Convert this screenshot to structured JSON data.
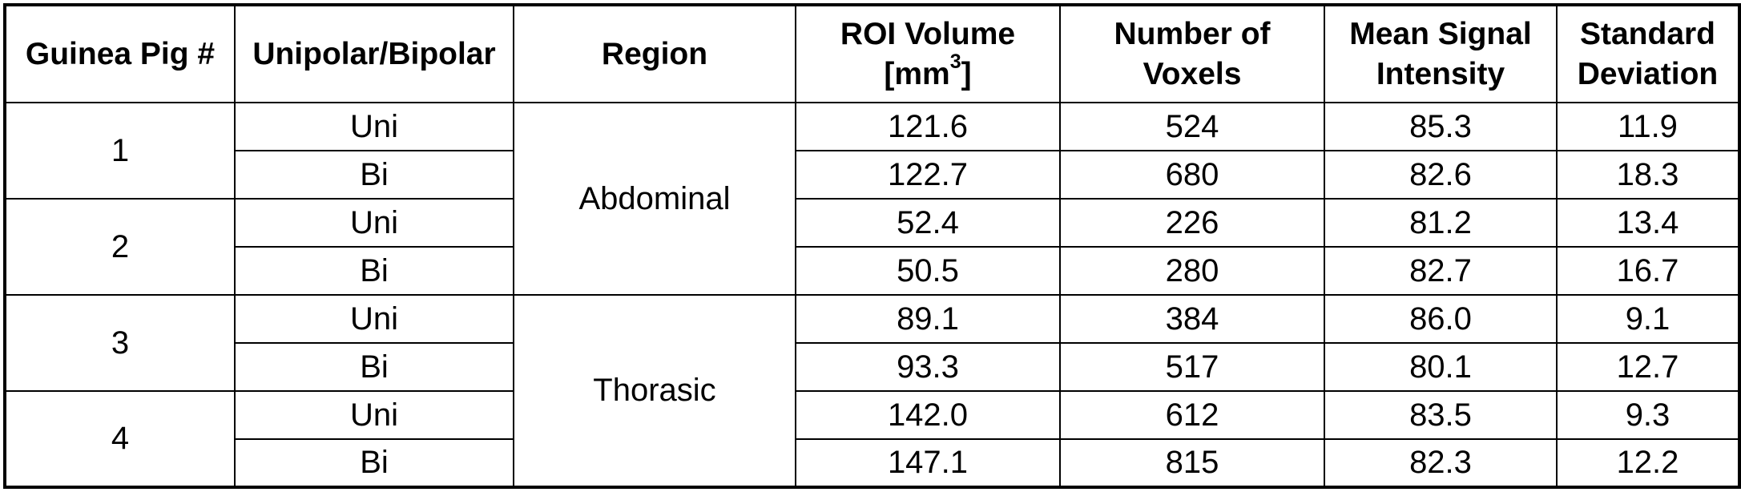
{
  "colors": {
    "background": "#ffffff",
    "border": "#000000",
    "text": "#000000"
  },
  "header": {
    "guinea_pig": "Guinea Pig #",
    "polarity": "Unipolar/Bipolar",
    "region": "Region",
    "roi_volume": {
      "line1": "ROI Volume",
      "unit_open": "[mm",
      "unit_sup": "3",
      "unit_close": "]"
    },
    "voxels": {
      "line1": "Number of",
      "line2": "Voxels"
    },
    "mean_signal": {
      "line1": "Mean Signal",
      "line2": "Intensity"
    },
    "std_dev": {
      "line1": "Standard",
      "line2": "Deviation"
    }
  },
  "rows": [
    {
      "guinea_pig": "1",
      "region": "Abdominal",
      "polarity": "Uni",
      "roi_volume": "121.6",
      "voxels": "524",
      "mean_signal": "85.3",
      "std_dev": "11.9"
    },
    {
      "polarity": "Bi",
      "roi_volume": "122.7",
      "voxels": "680",
      "mean_signal": "82.6",
      "std_dev": "18.3"
    },
    {
      "guinea_pig": "2",
      "polarity": "Uni",
      "roi_volume": "52.4",
      "voxels": "226",
      "mean_signal": "81.2",
      "std_dev": "13.4"
    },
    {
      "polarity": "Bi",
      "roi_volume": "50.5",
      "voxels": "280",
      "mean_signal": "82.7",
      "std_dev": "16.7"
    },
    {
      "guinea_pig": "3",
      "region": "Thorasic",
      "polarity": "Uni",
      "roi_volume": "89.1",
      "voxels": "384",
      "mean_signal": "86.0",
      "std_dev": "9.1"
    },
    {
      "polarity": "Bi",
      "roi_volume": "93.3",
      "voxels": "517",
      "mean_signal": "80.1",
      "std_dev": "12.7"
    },
    {
      "guinea_pig": "4",
      "polarity": "Uni",
      "roi_volume": "142.0",
      "voxels": "612",
      "mean_signal": "83.5",
      "std_dev": "9.3"
    },
    {
      "polarity": "Bi",
      "roi_volume": "147.1",
      "voxels": "815",
      "mean_signal": "82.3",
      "std_dev": "12.2"
    }
  ],
  "chart_data": {
    "type": "table",
    "columns": [
      "Guinea Pig #",
      "Unipolar/Bipolar",
      "Region",
      "ROI Volume [mm3]",
      "Number of Voxels",
      "Mean Signal Intensity",
      "Standard Deviation"
    ],
    "rows": [
      [
        "1",
        "Uni",
        "Abdominal",
        121.6,
        524,
        85.3,
        11.9
      ],
      [
        "1",
        "Bi",
        "Abdominal",
        122.7,
        680,
        82.6,
        18.3
      ],
      [
        "2",
        "Uni",
        "Abdominal",
        52.4,
        226,
        81.2,
        13.4
      ],
      [
        "2",
        "Bi",
        "Abdominal",
        50.5,
        280,
        82.7,
        16.7
      ],
      [
        "3",
        "Uni",
        "Thorasic",
        89.1,
        384,
        86.0,
        9.1
      ],
      [
        "3",
        "Bi",
        "Thorasic",
        93.3,
        517,
        80.1,
        12.7
      ],
      [
        "4",
        "Uni",
        "Thorasic",
        142.0,
        612,
        83.5,
        9.3
      ],
      [
        "4",
        "Bi",
        "Thorasic",
        147.1,
        815,
        82.3,
        12.2
      ]
    ]
  }
}
